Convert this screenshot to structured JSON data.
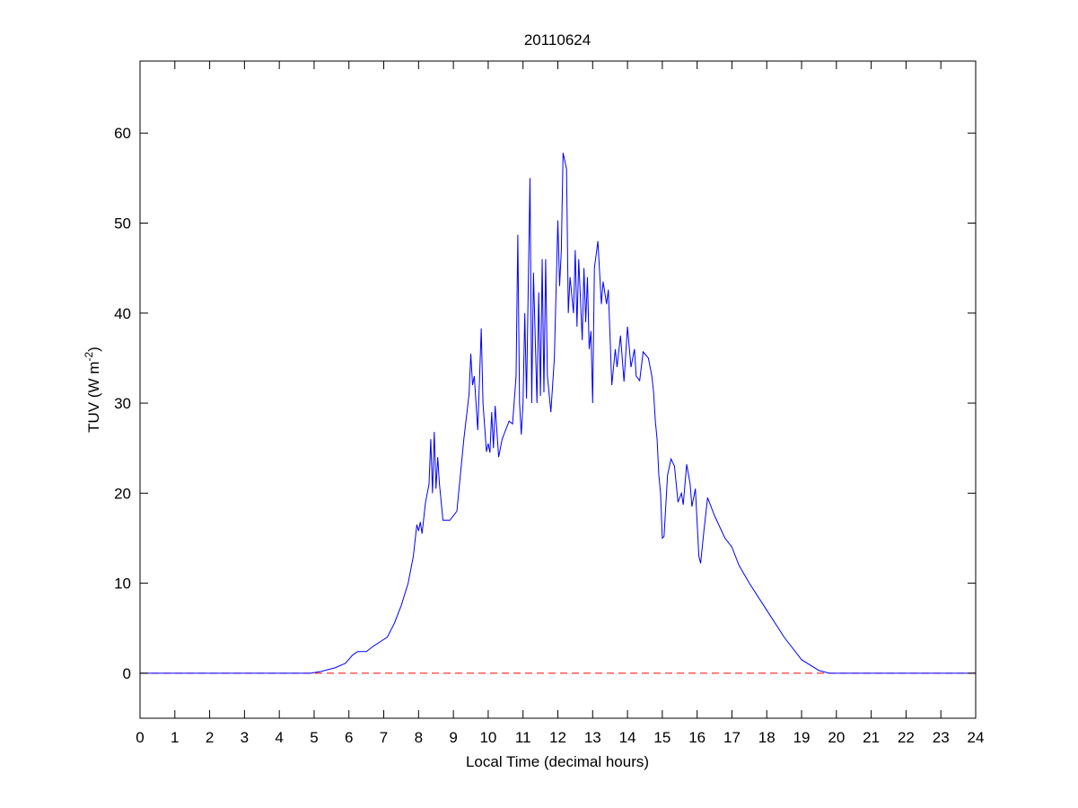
{
  "chart_data": {
    "type": "line",
    "title": "20110624",
    "x_label": "Local Time (decimal hours)",
    "y_label": "TUV (W m",
    "y_label_sup": "-2",
    "y_label_end": ")",
    "xlim": [
      0,
      24
    ],
    "xticks": [
      0,
      1,
      2,
      3,
      4,
      5,
      6,
      7,
      8,
      9,
      10,
      11,
      12,
      13,
      14,
      15,
      16,
      17,
      18,
      19,
      20,
      21,
      22,
      23,
      24
    ],
    "ylim": [
      -5,
      68
    ],
    "yticks": [
      0,
      10,
      20,
      30,
      40,
      50,
      60
    ],
    "reference_line": {
      "value": 0,
      "color": "#ff0000",
      "dashed": true
    },
    "series": [
      {
        "color": "#0000ff",
        "x": [
          0,
          4.9,
          5.2,
          5.6,
          5.9,
          6.1,
          6.25,
          6.5,
          6.7,
          6.9,
          7.1,
          7.3,
          7.5,
          7.7,
          7.85,
          7.95,
          8.0,
          8.05,
          8.1,
          8.2,
          8.3,
          8.35,
          8.4,
          8.45,
          8.5,
          8.55,
          8.6,
          8.7,
          8.9,
          9.1,
          9.2,
          9.3,
          9.45,
          9.5,
          9.55,
          9.6,
          9.7,
          9.8,
          9.85,
          9.95,
          10.0,
          10.05,
          10.1,
          10.15,
          10.2,
          10.3,
          10.4,
          10.5,
          10.6,
          10.7,
          10.8,
          10.85,
          10.9,
          10.95,
          11.0,
          11.05,
          11.1,
          11.15,
          11.2,
          11.25,
          11.3,
          11.4,
          11.45,
          11.5,
          11.55,
          11.6,
          11.65,
          11.7,
          11.8,
          11.9,
          12.0,
          12.05,
          12.1,
          12.15,
          12.25,
          12.3,
          12.35,
          12.45,
          12.5,
          12.55,
          12.6,
          12.7,
          12.75,
          12.8,
          12.85,
          12.9,
          12.95,
          13.0,
          13.05,
          13.15,
          13.25,
          13.3,
          13.4,
          13.45,
          13.55,
          13.65,
          13.7,
          13.8,
          13.9,
          14.0,
          14.1,
          14.2,
          14.25,
          14.35,
          14.45,
          14.6,
          14.7,
          14.75,
          14.8,
          14.85,
          14.9,
          14.95,
          15.0,
          15.05,
          15.15,
          15.25,
          15.35,
          15.45,
          15.55,
          15.6,
          15.7,
          15.8,
          15.85,
          15.95,
          16.05,
          16.1,
          16.2,
          16.3,
          16.5,
          16.8,
          17.0,
          17.2,
          17.5,
          18.0,
          18.5,
          19.0,
          19.5,
          19.8,
          24
        ],
        "values": [
          0,
          0,
          0.2,
          0.6,
          1.1,
          2.0,
          2.4,
          2.4,
          3.0,
          3.5,
          4.0,
          5.5,
          7.5,
          10,
          13,
          16.5,
          15.8,
          16.8,
          15.5,
          19,
          21,
          26,
          20,
          26.8,
          20.5,
          24,
          21,
          17,
          17,
          18,
          22,
          26,
          31,
          35.5,
          32,
          33,
          27,
          38.3,
          30,
          24.6,
          25.5,
          24.5,
          29,
          25,
          29.7,
          24,
          26,
          27,
          28,
          27.7,
          33,
          48.7,
          30,
          26.5,
          30,
          40,
          30.5,
          43,
          55,
          30,
          44.5,
          30,
          42.3,
          30.8,
          46,
          31.2,
          46,
          33,
          29,
          35,
          50.3,
          43,
          47,
          57.8,
          56,
          40,
          44,
          40,
          47,
          38.5,
          46,
          37,
          45,
          39,
          44,
          36,
          38,
          30,
          45,
          48,
          41,
          43.5,
          41,
          42.6,
          32,
          36,
          34,
          37.5,
          32.4,
          38.5,
          34,
          36,
          33,
          32.5,
          35.7,
          35,
          33,
          31.2,
          28,
          26,
          22,
          20,
          15,
          15.2,
          22,
          23.8,
          23,
          19,
          20,
          18.7,
          23.2,
          21,
          18.5,
          20.5,
          13,
          12.2,
          16,
          19.5,
          17.5,
          15,
          14,
          12,
          10,
          7,
          4,
          1.5,
          0.3,
          0,
          0
        ]
      }
    ]
  }
}
